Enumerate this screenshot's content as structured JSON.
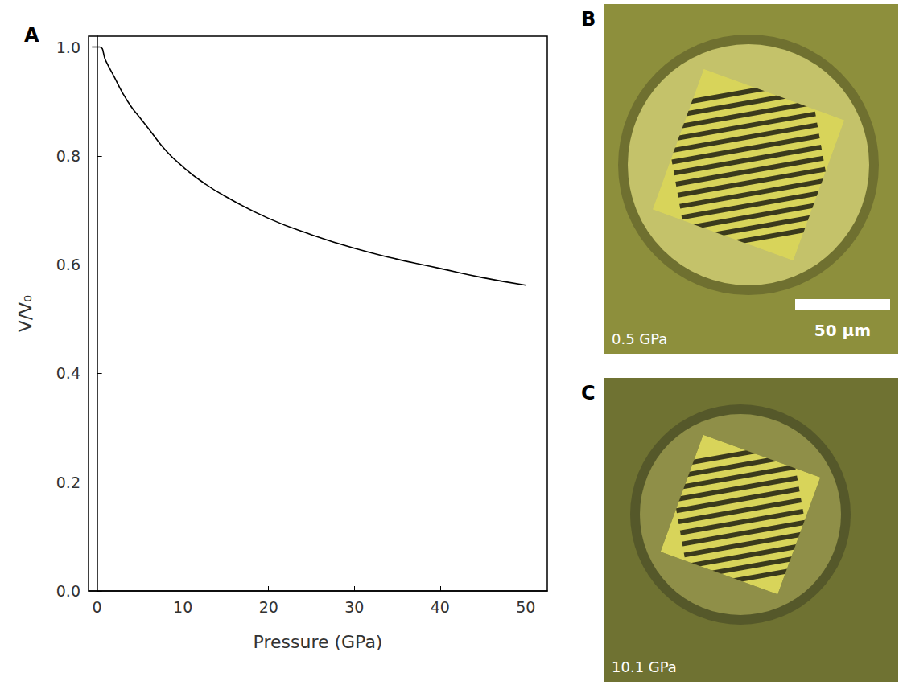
{
  "chart_data": {
    "type": "line",
    "panel_label": "A",
    "x_label": "Pressure (GPa)",
    "y_label": "V/V₀",
    "x": [
      -0.6,
      0.3,
      1,
      2,
      3,
      4,
      5,
      6,
      8,
      10,
      12,
      15,
      20,
      25,
      30,
      35,
      40,
      45,
      50
    ],
    "values": [
      1.0,
      1.0,
      0.975,
      0.945,
      0.915,
      0.89,
      0.87,
      0.85,
      0.81,
      0.78,
      0.755,
      0.725,
      0.685,
      0.655,
      0.63,
      0.61,
      0.593,
      0.576,
      0.562
    ],
    "color": "#000000",
    "xlim": [
      -1,
      52.5
    ],
    "xticks": [
      0,
      10,
      20,
      30,
      40,
      50
    ],
    "ylim": [
      0,
      1.02
    ],
    "yticks": [
      {
        "value": 0,
        "label": "0.0"
      },
      0.2,
      0.4,
      0.6,
      0.8,
      {
        "value": 1,
        "label": "1.0"
      }
    ],
    "grid": false
  },
  "images": [
    {
      "panel_label": "B",
      "pressure_label": "0.5 GPa",
      "scale_bar": "50 µm"
    },
    {
      "panel_label": "C",
      "pressure_label": "10.1 GPa"
    }
  ]
}
